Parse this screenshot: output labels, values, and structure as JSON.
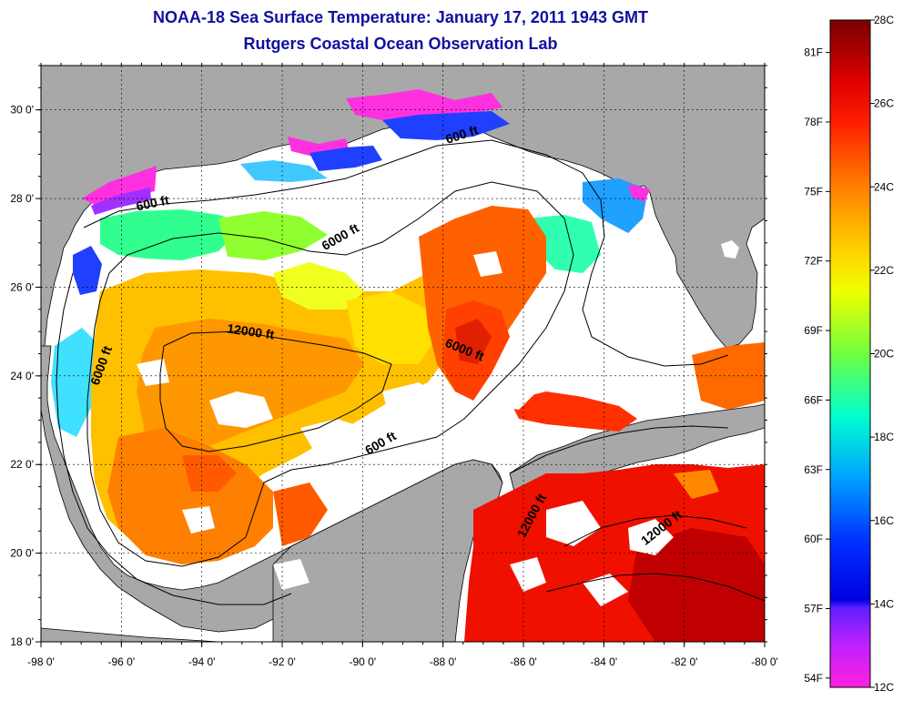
{
  "title": {
    "line1": "NOAA-18 Sea Surface Temperature:  January 17, 2011 1943 GMT",
    "line2": "Rutgers Coastal Ocean Observation Lab"
  },
  "map": {
    "lat_ticks": [
      {
        "value": 30,
        "label": "30 0'"
      },
      {
        "value": 28,
        "label": "28 0'"
      },
      {
        "value": 26,
        "label": "26 0'"
      },
      {
        "value": 24,
        "label": "24 0'"
      },
      {
        "value": 22,
        "label": "22 0'"
      },
      {
        "value": 20,
        "label": "20 0'"
      },
      {
        "value": 18,
        "label": "18 0'"
      }
    ],
    "lon_ticks": [
      {
        "value": -98,
        "label": "-98 0'"
      },
      {
        "value": -96,
        "label": "-96 0'"
      },
      {
        "value": -94,
        "label": "-94 0'"
      },
      {
        "value": -92,
        "label": "-92 0'"
      },
      {
        "value": -90,
        "label": "-90 0'"
      },
      {
        "value": -88,
        "label": "-88 0'"
      },
      {
        "value": -86,
        "label": "-86 0'"
      },
      {
        "value": -84,
        "label": "-84 0'"
      },
      {
        "value": -82,
        "label": "-82 0'"
      },
      {
        "value": -80,
        "label": "-80 0'"
      }
    ],
    "lat_range": [
      18,
      31
    ],
    "lon_range": [
      -98,
      -80
    ],
    "grid": "dotted",
    "contour_labels": [
      {
        "text": "600 ft",
        "lon": -95.2,
        "lat": 27.8,
        "rotate": -12
      },
      {
        "text": "600 ft",
        "lon": -87.5,
        "lat": 29.35,
        "rotate": -18
      },
      {
        "text": "6000 ft",
        "lon": -90.5,
        "lat": 27.05,
        "rotate": -30
      },
      {
        "text": "6000 ft",
        "lon": -96.4,
        "lat": 24.2,
        "rotate": -70
      },
      {
        "text": "12000 ft",
        "lon": -92.8,
        "lat": 24.9,
        "rotate": 8
      },
      {
        "text": "6000 ft",
        "lon": -87.5,
        "lat": 24.5,
        "rotate": 22
      },
      {
        "text": "600 ft",
        "lon": -89.5,
        "lat": 22.4,
        "rotate": -30
      },
      {
        "text": "12000 ft",
        "lon": -85.7,
        "lat": 20.8,
        "rotate": -62
      },
      {
        "text": "12000 ft",
        "lon": -82.5,
        "lat": 20.5,
        "rotate": -38
      }
    ],
    "colors": {
      "land": "#a8a8a8",
      "no_data": "#ffffff"
    }
  },
  "color_scale": {
    "celsius": [
      "28C",
      "26C",
      "24C",
      "22C",
      "20C",
      "18C",
      "16C",
      "14C",
      "12C"
    ],
    "fahrenheit": [
      "81F",
      "78F",
      "75F",
      "72F",
      "69F",
      "66F",
      "63F",
      "60F",
      "57F",
      "54F"
    ],
    "range_c": [
      12,
      28
    ],
    "stops": [
      {
        "c": 28,
        "color": "#7a0000"
      },
      {
        "c": 26.5,
        "color": "#e00000"
      },
      {
        "c": 25.5,
        "color": "#ff2000"
      },
      {
        "c": 24,
        "color": "#ff8000"
      },
      {
        "c": 22.5,
        "color": "#ffd000"
      },
      {
        "c": 21.5,
        "color": "#f0ff00"
      },
      {
        "c": 20,
        "color": "#70ff40"
      },
      {
        "c": 18.5,
        "color": "#00ffd0"
      },
      {
        "c": 17,
        "color": "#00a0ff"
      },
      {
        "c": 15.5,
        "color": "#0030ff"
      },
      {
        "c": 14.1,
        "color": "#0000e0"
      },
      {
        "c": 13.9,
        "color": "#6020ff"
      },
      {
        "c": 13,
        "color": "#c020ff"
      },
      {
        "c": 12,
        "color": "#ff20e0"
      }
    ]
  }
}
